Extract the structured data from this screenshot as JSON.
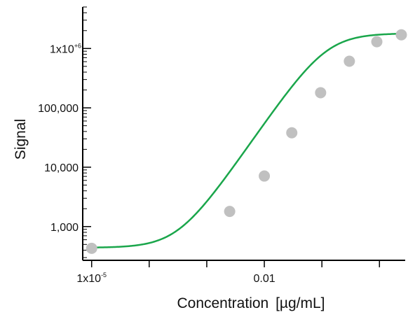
{
  "chart_data": {
    "type": "scatter",
    "title": "",
    "xlabel": "Concentration",
    "xlabel_unit": "[µg/mL]",
    "ylabel": "Signal",
    "x_scale": "log",
    "y_scale": "log",
    "xlim": [
      7e-06,
      2.8
    ],
    "ylim": [
      270,
      5000000
    ],
    "x_ticks": [
      {
        "value": 1e-05,
        "label": "1x10",
        "sup": "-5"
      },
      {
        "value": 0.01,
        "label": "0.01",
        "sup": ""
      }
    ],
    "x_minor_ticks": [
      0.0001,
      0.001,
      0.1,
      1
    ],
    "y_ticks": [
      {
        "value": 1000,
        "label": "1,000",
        "sup": ""
      },
      {
        "value": 10000,
        "label": "10,000",
        "sup": ""
      },
      {
        "value": 100000,
        "label": "100,000",
        "sup": ""
      },
      {
        "value": 1000000,
        "label": "1x10",
        "sup": "+6"
      }
    ],
    "series": [
      {
        "points": [
          {
            "x": 1e-05,
            "y": 430
          },
          {
            "x": 0.0025,
            "y": 1800
          },
          {
            "x": 0.01,
            "y": 7100
          },
          {
            "x": 0.03,
            "y": 38000
          },
          {
            "x": 0.095,
            "y": 180000
          },
          {
            "x": 0.3,
            "y": 610000
          },
          {
            "x": 0.9,
            "y": 1300000
          },
          {
            "x": 2.4,
            "y": 1700000
          }
        ],
        "fit": {
          "type": "4PL",
          "bottom": 440,
          "top": 1800000,
          "ec50": 0.12,
          "hill": 1.4
        }
      }
    ],
    "colors": {
      "curve": "#1aa64b",
      "points": "#c0c0c0",
      "axis": "#000000"
    },
    "grid": false,
    "legend": "none"
  }
}
